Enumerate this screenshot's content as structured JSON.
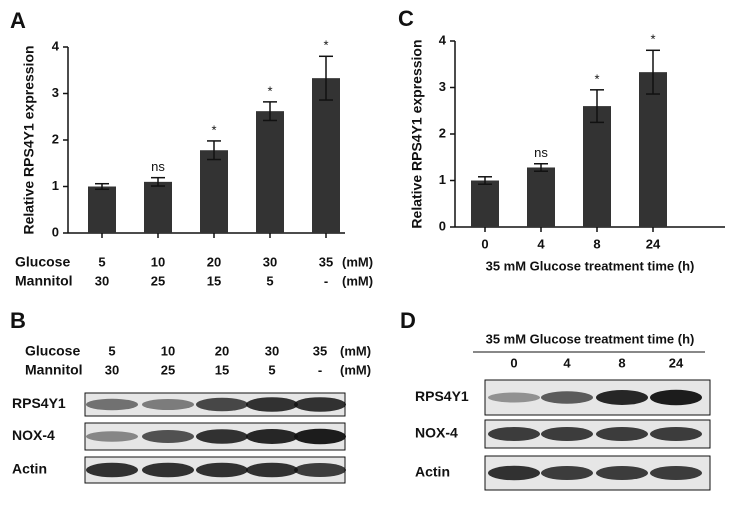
{
  "chart_data": [
    {
      "type": "bar",
      "panel": "A",
      "ylabel": "Relative RPS4Y1 expression",
      "row_labels": [
        "Glucose",
        "Mannitol"
      ],
      "unit": "(mM)",
      "categories": [
        "5",
        "10",
        "20",
        "30",
        "35"
      ],
      "categories2": [
        "30",
        "25",
        "15",
        "5",
        "-"
      ],
      "values": [
        1.0,
        1.1,
        1.78,
        2.62,
        3.33
      ],
      "errors": [
        0.06,
        0.09,
        0.2,
        0.2,
        0.47
      ],
      "annotations": [
        null,
        "ns",
        "*",
        "*",
        "*"
      ],
      "color": "#333333",
      "ylim": [
        0,
        4
      ],
      "yticks": [
        0,
        1,
        2,
        3,
        4
      ]
    },
    {
      "type": "bar",
      "panel": "C",
      "ylabel": "Relative RPS4Y1 expression",
      "xlabel": "35 mM Glucose treatment time (h)",
      "categories": [
        "0",
        "4",
        "8",
        "24"
      ],
      "values": [
        1.0,
        1.28,
        2.6,
        3.33
      ],
      "errors": [
        0.08,
        0.08,
        0.35,
        0.47
      ],
      "annotations": [
        null,
        "ns",
        "*",
        "*"
      ],
      "color": "#333333",
      "ylim": [
        0,
        4
      ],
      "yticks": [
        0,
        1,
        2,
        3,
        4
      ]
    }
  ],
  "blots": [
    {
      "panel": "B",
      "row_labels": [
        "Glucose",
        "Mannitol"
      ],
      "unit": "(mM)",
      "lanes": [
        "5",
        "10",
        "20",
        "30",
        "35"
      ],
      "lanes2": [
        "30",
        "25",
        "15",
        "5",
        "-"
      ],
      "bands": [
        "RPS4Y1",
        "NOX-4",
        "Actin"
      ]
    },
    {
      "panel": "D",
      "title": "35 mM Glucose treatment time (h)",
      "lanes": [
        "0",
        "4",
        "8",
        "24"
      ],
      "bands": [
        "RPS4Y1",
        "NOX-4",
        "Actin"
      ]
    }
  ]
}
